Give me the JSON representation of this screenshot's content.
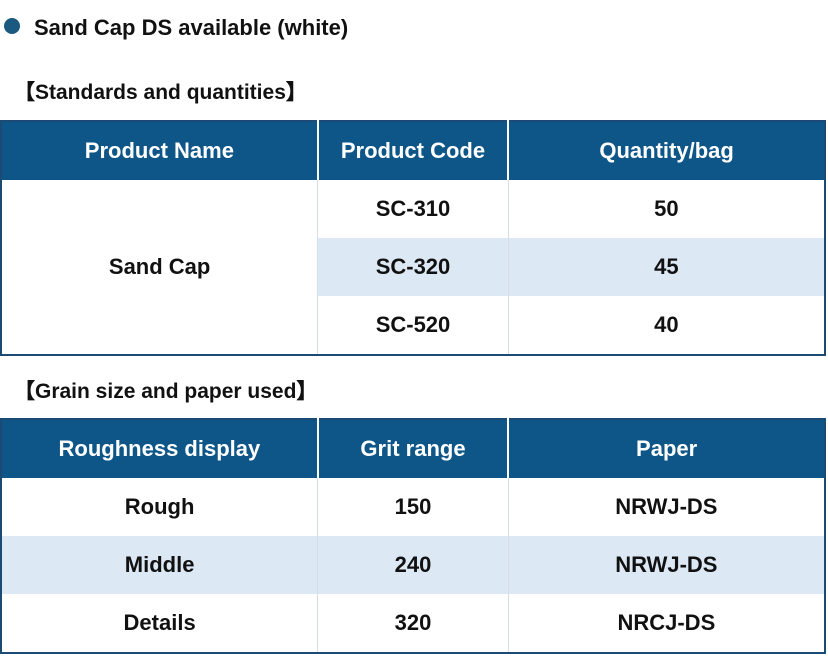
{
  "bullet": {
    "text": "Sand Cap DS available (white)",
    "color": "#1a5a80"
  },
  "section1": {
    "heading": "【Standards and quantities】",
    "headers": [
      "Product Name",
      "Product Code",
      "Quantity/bag"
    ],
    "product_name": "Sand Cap",
    "rows": [
      {
        "code": "SC-310",
        "quantity": "50"
      },
      {
        "code": "SC-320",
        "quantity": "45"
      },
      {
        "code": "SC-520",
        "quantity": "40"
      }
    ]
  },
  "section2": {
    "heading": "【Grain size and paper used】",
    "headers": [
      "Roughness display",
      "Grit range",
      "Paper"
    ],
    "rows": [
      {
        "roughness": "Rough",
        "grit": "150",
        "paper": "NRWJ-DS"
      },
      {
        "roughness": "Middle",
        "grit": "240",
        "paper": "NRWJ-DS"
      },
      {
        "roughness": "Details",
        "grit": "320",
        "paper": "NRCJ-DS"
      }
    ]
  },
  "colors": {
    "header_bg": "#0f5688",
    "alt_row_bg": "#dce8f4",
    "border": "#1b4a74"
  }
}
